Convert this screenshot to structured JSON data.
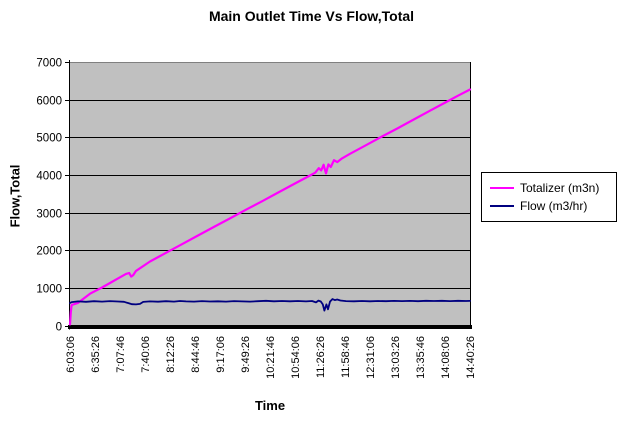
{
  "chart_data": {
    "type": "line",
    "title": "Main Outlet Time Vs Flow,Total",
    "xlabel": "Time",
    "ylabel": "Flow,Total",
    "ylim": [
      0,
      7000
    ],
    "y_ticks": [
      0,
      1000,
      2000,
      3000,
      4000,
      5000,
      6000,
      7000
    ],
    "categories": [
      "6:03:06",
      "6:35:26",
      "7:07:46",
      "7:40:06",
      "8:12:26",
      "8:44:46",
      "9:17:06",
      "9:49:26",
      "10:21:46",
      "10:54:06",
      "11:26:26",
      "11:58:46",
      "12:31:06",
      "13:03:26",
      "13:35:46",
      "14:08:06",
      "14:40:26"
    ],
    "grid": true,
    "legend_position": "right",
    "colors": {
      "plot_background": "#C0C0C0",
      "gridline": "#000000",
      "plot_top_border": "#808080",
      "axis": "#000000",
      "text": "#000000",
      "chart_background": "#FFFFFF"
    },
    "series": [
      {
        "name": "Totalizer (m3n)",
        "color": "#FF00FF",
        "points": [
          [
            0.0,
            30
          ],
          [
            0.002,
            350
          ],
          [
            0.004,
            545
          ],
          [
            0.02,
            600
          ],
          [
            0.05,
            845
          ],
          [
            0.08,
            1010
          ],
          [
            0.1,
            1130
          ],
          [
            0.12,
            1250
          ],
          [
            0.14,
            1370
          ],
          [
            0.148,
            1395
          ],
          [
            0.153,
            1300
          ],
          [
            0.158,
            1340
          ],
          [
            0.165,
            1450
          ],
          [
            0.2,
            1700
          ],
          [
            0.24,
            1930
          ],
          [
            0.28,
            2160
          ],
          [
            0.32,
            2390
          ],
          [
            0.36,
            2620
          ],
          [
            0.4,
            2845
          ],
          [
            0.44,
            3075
          ],
          [
            0.48,
            3300
          ],
          [
            0.52,
            3530
          ],
          [
            0.56,
            3760
          ],
          [
            0.6,
            3985
          ],
          [
            0.613,
            4060
          ],
          [
            0.622,
            4180
          ],
          [
            0.628,
            4120
          ],
          [
            0.634,
            4270
          ],
          [
            0.64,
            4040
          ],
          [
            0.646,
            4280
          ],
          [
            0.652,
            4210
          ],
          [
            0.66,
            4390
          ],
          [
            0.668,
            4340
          ],
          [
            0.68,
            4440
          ],
          [
            0.7,
            4560
          ],
          [
            0.74,
            4790
          ],
          [
            0.78,
            5020
          ],
          [
            0.82,
            5245
          ],
          [
            0.86,
            5475
          ],
          [
            0.9,
            5705
          ],
          [
            0.94,
            5935
          ],
          [
            0.97,
            6105
          ],
          [
            1.0,
            6270
          ]
        ]
      },
      {
        "name": "Flow (m3/hr)",
        "color": "#000080",
        "points": [
          [
            0.0,
            598
          ],
          [
            0.004,
            622
          ],
          [
            0.02,
            640
          ],
          [
            0.04,
            630
          ],
          [
            0.06,
            646
          ],
          [
            0.08,
            634
          ],
          [
            0.1,
            648
          ],
          [
            0.12,
            638
          ],
          [
            0.135,
            630
          ],
          [
            0.148,
            588
          ],
          [
            0.155,
            566
          ],
          [
            0.165,
            560
          ],
          [
            0.175,
            574
          ],
          [
            0.183,
            628
          ],
          [
            0.2,
            640
          ],
          [
            0.22,
            632
          ],
          [
            0.24,
            646
          ],
          [
            0.26,
            636
          ],
          [
            0.275,
            652
          ],
          [
            0.29,
            640
          ],
          [
            0.31,
            636
          ],
          [
            0.33,
            648
          ],
          [
            0.35,
            638
          ],
          [
            0.37,
            644
          ],
          [
            0.39,
            634
          ],
          [
            0.41,
            648
          ],
          [
            0.43,
            640
          ],
          [
            0.45,
            634
          ],
          [
            0.47,
            646
          ],
          [
            0.49,
            656
          ],
          [
            0.51,
            644
          ],
          [
            0.53,
            652
          ],
          [
            0.55,
            642
          ],
          [
            0.57,
            650
          ],
          [
            0.59,
            640
          ],
          [
            0.605,
            652
          ],
          [
            0.615,
            614
          ],
          [
            0.621,
            662
          ],
          [
            0.627,
            638
          ],
          [
            0.632,
            560
          ],
          [
            0.636,
            395
          ],
          [
            0.641,
            560
          ],
          [
            0.645,
            430
          ],
          [
            0.65,
            636
          ],
          [
            0.656,
            700
          ],
          [
            0.662,
            676
          ],
          [
            0.668,
            692
          ],
          [
            0.676,
            664
          ],
          [
            0.69,
            648
          ],
          [
            0.71,
            642
          ],
          [
            0.73,
            650
          ],
          [
            0.75,
            644
          ],
          [
            0.77,
            652
          ],
          [
            0.79,
            645
          ],
          [
            0.81,
            654
          ],
          [
            0.83,
            648
          ],
          [
            0.85,
            653
          ],
          [
            0.87,
            646
          ],
          [
            0.89,
            655
          ],
          [
            0.91,
            650
          ],
          [
            0.93,
            656
          ],
          [
            0.95,
            649
          ],
          [
            0.97,
            655
          ],
          [
            0.99,
            651
          ],
          [
            1.0,
            654
          ]
        ]
      }
    ]
  }
}
